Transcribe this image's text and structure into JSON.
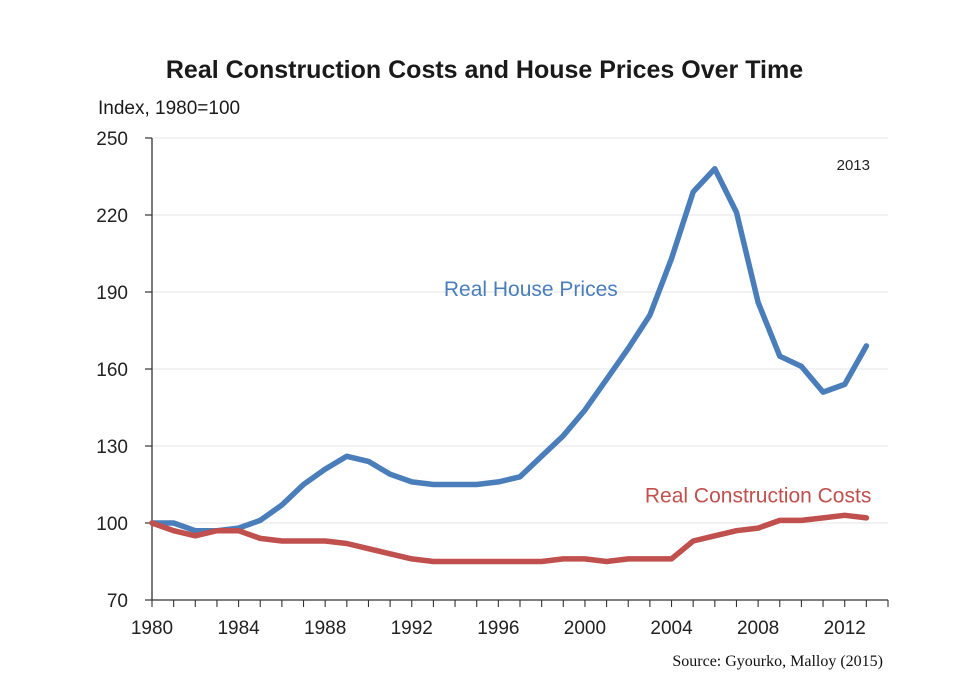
{
  "chart_data": {
    "type": "line",
    "title": "Real Construction Costs and House Prices Over Time",
    "ylabel": "Index, 1980=100",
    "xlabel": "",
    "ylim": [
      70,
      250
    ],
    "xlim": [
      1980,
      2014
    ],
    "yticks": [
      70,
      100,
      130,
      160,
      190,
      220,
      250
    ],
    "xticks": [
      1980,
      1984,
      1988,
      1992,
      1996,
      2000,
      2004,
      2008,
      2012
    ],
    "grid": true,
    "annotation": "2013",
    "series": [
      {
        "name": "Real House Prices",
        "color": "#4a7ebb",
        "x": [
          1980,
          1981,
          1982,
          1983,
          1984,
          1985,
          1986,
          1987,
          1988,
          1989,
          1990,
          1991,
          1992,
          1993,
          1994,
          1995,
          1996,
          1997,
          1998,
          1999,
          2000,
          2001,
          2002,
          2003,
          2004,
          2005,
          2006,
          2007,
          2008,
          2009,
          2010,
          2011,
          2012,
          2013
        ],
        "values": [
          100,
          100,
          97,
          97,
          98,
          101,
          107,
          115,
          121,
          126,
          124,
          119,
          116,
          115,
          115,
          115,
          116,
          118,
          126,
          134,
          144,
          156,
          168,
          181,
          203,
          229,
          238,
          221,
          186,
          165,
          161,
          151,
          154,
          169
        ]
      },
      {
        "name": "Real Construction Costs",
        "color": "#c0504d",
        "x": [
          1980,
          1981,
          1982,
          1983,
          1984,
          1985,
          1986,
          1987,
          1988,
          1989,
          1990,
          1991,
          1992,
          1993,
          1994,
          1995,
          1996,
          1997,
          1998,
          1999,
          2000,
          2001,
          2002,
          2003,
          2004,
          2005,
          2006,
          2007,
          2008,
          2009,
          2010,
          2011,
          2012,
          2013
        ],
        "values": [
          100,
          97,
          95,
          97,
          97,
          94,
          93,
          93,
          93,
          92,
          90,
          88,
          86,
          85,
          85,
          85,
          85,
          85,
          85,
          86,
          86,
          85,
          86,
          86,
          86,
          93,
          95,
          97,
          98,
          101,
          101,
          102,
          103,
          102
        ]
      }
    ]
  },
  "source": "Source: Gyourko, Malloy (2015)"
}
